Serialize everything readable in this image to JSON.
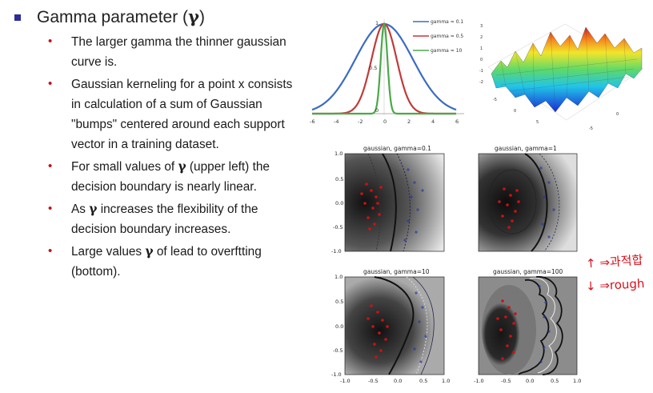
{
  "slide": {
    "title_prefix": "Gamma parameter (",
    "title_symbol": "γ",
    "title_suffix": ")",
    "bullets": [
      {
        "text": "The larger gamma the thinner gaussian curve is."
      },
      {
        "text": "Gaussian kerneling for a point x consists in calculation of a sum of Gaussian \"bumps\" centered around each support vector in a training dataset."
      },
      {
        "pre": "For small values of ",
        "sym": "γ",
        "post": " (upper left) the decision boundary is nearly linear."
      },
      {
        "pre": "As ",
        "sym": "γ",
        "post": " increases the flexibility of the decision boundary increases."
      },
      {
        "pre": "Large values ",
        "sym": "γ",
        "post": " of lead to overftting (bottom)."
      }
    ]
  },
  "gaussian_plot": {
    "legend": [
      "gamma = 0.1",
      "gamma = 0.5",
      "gamma = 10"
    ],
    "colors": [
      "#3b6bc6",
      "#c23a3a",
      "#4aa84a"
    ],
    "x_ticks": [
      "-6",
      "-4",
      "-2",
      "0",
      "2",
      "4",
      "6"
    ],
    "y_labels": [
      "1",
      "0.5",
      "0"
    ]
  },
  "surface_plot": {
    "z_ticks": [
      "3",
      "2",
      "1",
      "0",
      "-1",
      "-2"
    ],
    "base_ticks": [
      "-5",
      "0",
      "5",
      "-5",
      "0"
    ]
  },
  "svm_panels": {
    "titles": [
      "gaussian, gamma=0.1",
      "gaussian, gamma=1",
      "gaussian, gamma=10",
      "gaussian, gamma=100"
    ],
    "y_ticks": [
      "1.0",
      "0.5",
      "0.0",
      "-0.5",
      "-1.0"
    ],
    "x_ticks": [
      "-1.0",
      "-0.5",
      "0.0",
      "0.5",
      "1.0"
    ]
  },
  "annotation": {
    "up_text": "↑ ⇒과적합",
    "down_text": "↓ ⇒rough"
  },
  "colors": {
    "title_bullet": "#2b2b9a",
    "bullet_dot": "#c0141a",
    "annotation": "#d6111b"
  }
}
